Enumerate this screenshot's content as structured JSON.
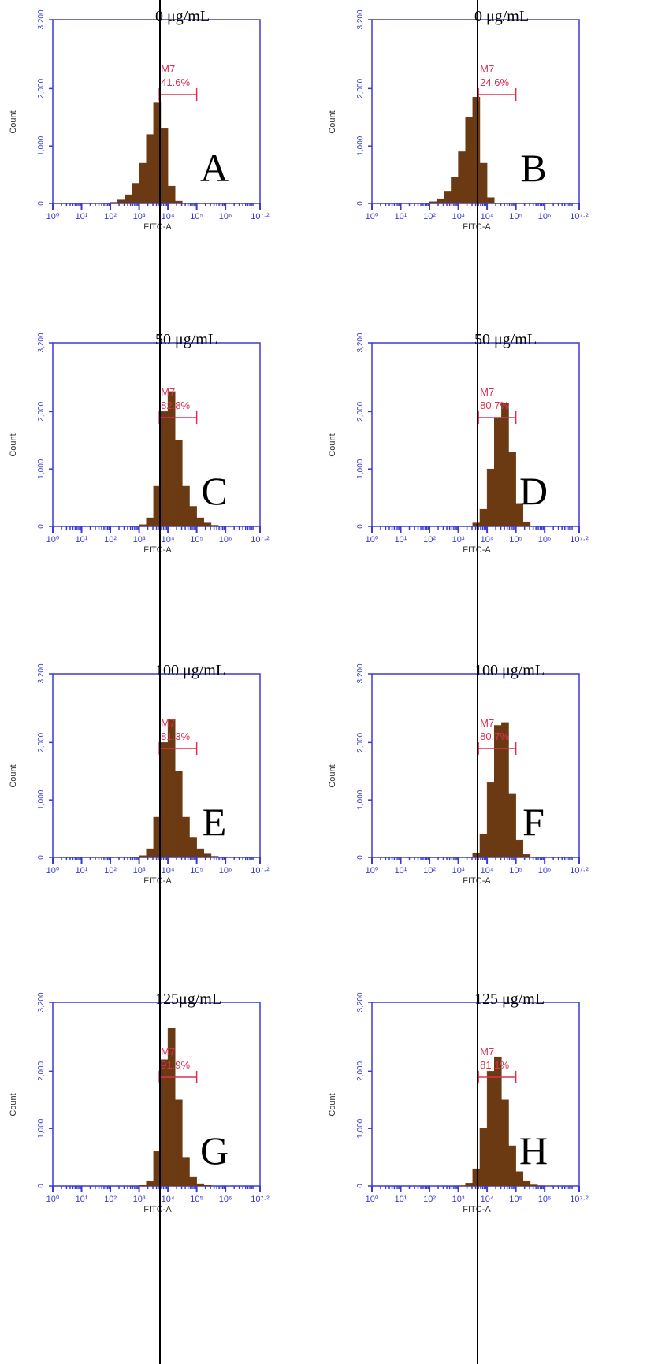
{
  "chart_data": [
    {
      "type": "histogram",
      "title": "0 μg/mL",
      "panel": "A",
      "xlabel": "FITC-A",
      "ylabel": "Count",
      "gate_label": "M7",
      "gate_percent": "41.6%",
      "gate_range": [
        3.7,
        5.0
      ],
      "color": "#6b3a12",
      "bins": [
        2.0,
        2.25,
        2.5,
        2.75,
        3.0,
        3.25,
        3.5,
        3.75,
        4.0,
        4.25,
        4.5,
        4.75,
        5.0,
        5.25,
        5.5,
        5.75,
        6.0
      ],
      "values": [
        20,
        60,
        150,
        350,
        700,
        1200,
        1750,
        1300,
        300,
        40,
        10,
        0,
        0,
        0,
        0,
        0
      ],
      "xlim": [
        0,
        7.2
      ],
      "ylim": [
        0,
        3200
      ],
      "xscale": "log",
      "xticks": [
        {
          "value": 0,
          "label": "10⁰"
        },
        {
          "value": 1,
          "label": "10¹"
        },
        {
          "value": 2,
          "label": "10²"
        },
        {
          "value": 3,
          "label": "10³"
        },
        {
          "value": 4,
          "label": "10⁴"
        },
        {
          "value": 5,
          "label": "10⁵"
        },
        {
          "value": 6,
          "label": "10⁶"
        },
        {
          "value": 7.2,
          "label": "10⁷·²"
        }
      ],
      "yticks": [
        0,
        {
          "value": 1000,
          "label": "1,000"
        },
        {
          "value": 2000,
          "label": "2,000"
        },
        {
          "value": 3200,
          "label": "3,200"
        }
      ]
    },
    {
      "type": "histogram",
      "title": "0 μg/mL",
      "panel": "B",
      "xlabel": "FITC-A",
      "ylabel": "Count",
      "gate_label": "M7",
      "gate_percent": "24.6%",
      "gate_range": [
        3.7,
        5.0
      ],
      "color": "#6b3a12",
      "bins": [
        2.0,
        2.25,
        2.5,
        2.75,
        3.0,
        3.25,
        3.5,
        3.75,
        4.0,
        4.25,
        4.5,
        4.75,
        5.0,
        5.25,
        5.5,
        5.75,
        6.0
      ],
      "values": [
        30,
        80,
        200,
        450,
        900,
        1500,
        1850,
        700,
        100,
        10,
        0,
        0,
        0,
        0,
        0,
        0
      ],
      "xlim": [
        0,
        7.2
      ],
      "ylim": [
        0,
        3200
      ],
      "xscale": "log",
      "xticks": [
        {
          "value": 0,
          "label": "10⁰"
        },
        {
          "value": 1,
          "label": "10¹"
        },
        {
          "value": 2,
          "label": "10²"
        },
        {
          "value": 3,
          "label": "10³"
        },
        {
          "value": 4,
          "label": "10⁴"
        },
        {
          "value": 5,
          "label": "10⁵"
        },
        {
          "value": 6,
          "label": "10⁶"
        },
        {
          "value": 7.2,
          "label": "10⁷·²"
        }
      ],
      "yticks": [
        0,
        {
          "value": 1000,
          "label": "1,000"
        },
        {
          "value": 2000,
          "label": "2,000"
        },
        {
          "value": 3200,
          "label": "3,200"
        }
      ]
    },
    {
      "type": "histogram",
      "title": "50 μg/mL",
      "panel": "C",
      "xlabel": "FITC-A",
      "ylabel": "Count",
      "gate_label": "M7",
      "gate_percent": "82.8%",
      "gate_range": [
        3.7,
        5.0
      ],
      "color": "#6b3a12",
      "bins": [
        2.0,
        2.25,
        2.5,
        2.75,
        3.0,
        3.25,
        3.5,
        3.75,
        4.0,
        4.25,
        4.5,
        4.75,
        5.0,
        5.25,
        5.5,
        5.75,
        6.0
      ],
      "values": [
        0,
        0,
        0,
        5,
        30,
        150,
        700,
        2000,
        2350,
        1500,
        700,
        350,
        150,
        60,
        20,
        5
      ],
      "xlim": [
        0,
        7.2
      ],
      "ylim": [
        0,
        3200
      ],
      "xscale": "log",
      "xticks": [
        {
          "value": 0,
          "label": "10⁰"
        },
        {
          "value": 1,
          "label": "10¹"
        },
        {
          "value": 2,
          "label": "10²"
        },
        {
          "value": 3,
          "label": "10³"
        },
        {
          "value": 4,
          "label": "10⁴"
        },
        {
          "value": 5,
          "label": "10⁵"
        },
        {
          "value": 6,
          "label": "10⁶"
        },
        {
          "value": 7.2,
          "label": "10⁷·²"
        }
      ],
      "yticks": [
        0,
        {
          "value": 1000,
          "label": "1,000"
        },
        {
          "value": 2000,
          "label": "2,000"
        },
        {
          "value": 3200,
          "label": "3,200"
        }
      ]
    },
    {
      "type": "histogram",
      "title": "50 μg/mL",
      "panel": "D",
      "xlabel": "FITC-A",
      "ylabel": "Count",
      "gate_label": "M7",
      "gate_percent": "80.7%",
      "gate_range": [
        3.7,
        5.0
      ],
      "color": "#6b3a12",
      "bins": [
        2.0,
        2.25,
        2.5,
        2.75,
        3.0,
        3.25,
        3.5,
        3.75,
        4.0,
        4.25,
        4.5,
        4.75,
        5.0,
        5.25,
        5.5,
        5.75,
        6.0
      ],
      "values": [
        0,
        0,
        0,
        0,
        0,
        10,
        60,
        300,
        1000,
        1900,
        2150,
        1300,
        400,
        80,
        10,
        0
      ],
      "xlim": [
        0,
        7.2
      ],
      "ylim": [
        0,
        3200
      ],
      "xscale": "log",
      "xticks": [
        {
          "value": 0,
          "label": "10⁰"
        },
        {
          "value": 1,
          "label": "10¹"
        },
        {
          "value": 2,
          "label": "10²"
        },
        {
          "value": 3,
          "label": "10³"
        },
        {
          "value": 4,
          "label": "10⁴"
        },
        {
          "value": 5,
          "label": "10⁵"
        },
        {
          "value": 6,
          "label": "10⁶"
        },
        {
          "value": 7.2,
          "label": "10⁷·²"
        }
      ],
      "yticks": [
        0,
        {
          "value": 1000,
          "label": "1,000"
        },
        {
          "value": 2000,
          "label": "2,000"
        },
        {
          "value": 3200,
          "label": "3,200"
        }
      ]
    },
    {
      "type": "histogram",
      "title": "100 μg/mL",
      "panel": "E",
      "xlabel": "FITC-A",
      "ylabel": "Count",
      "gate_label": "M7",
      "gate_percent": "81.3%",
      "gate_range": [
        3.7,
        5.0
      ],
      "color": "#6b3a12",
      "bins": [
        2.0,
        2.25,
        2.5,
        2.75,
        3.0,
        3.25,
        3.5,
        3.75,
        4.0,
        4.25,
        4.5,
        4.75,
        5.0,
        5.25,
        5.5,
        5.75,
        6.0
      ],
      "values": [
        0,
        0,
        0,
        5,
        30,
        150,
        700,
        2000,
        2400,
        1500,
        700,
        350,
        150,
        60,
        20,
        5
      ],
      "xlim": [
        0,
        7.2
      ],
      "ylim": [
        0,
        3200
      ],
      "xscale": "log",
      "xticks": [
        {
          "value": 0,
          "label": "10⁰"
        },
        {
          "value": 1,
          "label": "10¹"
        },
        {
          "value": 2,
          "label": "10²"
        },
        {
          "value": 3,
          "label": "10³"
        },
        {
          "value": 4,
          "label": "10⁴"
        },
        {
          "value": 5,
          "label": "10⁵"
        },
        {
          "value": 6,
          "label": "10⁶"
        },
        {
          "value": 7.2,
          "label": "10⁷·²"
        }
      ],
      "yticks": [
        0,
        {
          "value": 1000,
          "label": "1,000"
        },
        {
          "value": 2000,
          "label": "2,000"
        },
        {
          "value": 3200,
          "label": "3,200"
        }
      ]
    },
    {
      "type": "histogram",
      "title": "100 μg/mL",
      "panel": "F",
      "xlabel": "FITC-A",
      "ylabel": "Count",
      "gate_label": "M7",
      "gate_percent": "80.7%",
      "gate_range": [
        3.7,
        5.0
      ],
      "color": "#6b3a12",
      "bins": [
        2.0,
        2.25,
        2.5,
        2.75,
        3.0,
        3.25,
        3.5,
        3.75,
        4.0,
        4.25,
        4.5,
        4.75,
        5.0,
        5.25,
        5.5,
        5.75,
        6.0
      ],
      "values": [
        0,
        0,
        0,
        0,
        0,
        10,
        80,
        400,
        1300,
        2300,
        2350,
        1100,
        300,
        50,
        5,
        0
      ],
      "xlim": [
        0,
        7.2
      ],
      "ylim": [
        0,
        3200
      ],
      "xscale": "log",
      "xticks": [
        {
          "value": 0,
          "label": "10⁰"
        },
        {
          "value": 1,
          "label": "10¹"
        },
        {
          "value": 2,
          "label": "10²"
        },
        {
          "value": 3,
          "label": "10³"
        },
        {
          "value": 4,
          "label": "10⁴"
        },
        {
          "value": 5,
          "label": "10⁵"
        },
        {
          "value": 6,
          "label": "10⁶"
        },
        {
          "value": 7.2,
          "label": "10⁷·²"
        }
      ],
      "yticks": [
        0,
        {
          "value": 1000,
          "label": "1,000"
        },
        {
          "value": 2000,
          "label": "2,000"
        },
        {
          "value": 3200,
          "label": "3,200"
        }
      ]
    },
    {
      "type": "histogram",
      "title": "125μg/mL",
      "panel": "G",
      "xlabel": "FITC-A",
      "ylabel": "Count",
      "gate_label": "M7",
      "gate_percent": "91.9%",
      "gate_range": [
        3.7,
        5.0
      ],
      "color": "#6b3a12",
      "bins": [
        2.0,
        2.25,
        2.5,
        2.75,
        3.0,
        3.25,
        3.5,
        3.75,
        4.0,
        4.25,
        4.5,
        4.75,
        5.0,
        5.25,
        5.5,
        5.75,
        6.0
      ],
      "values": [
        0,
        0,
        0,
        0,
        10,
        80,
        600,
        2200,
        2750,
        1500,
        500,
        150,
        40,
        10,
        0,
        0
      ],
      "xlim": [
        0,
        7.2
      ],
      "ylim": [
        0,
        3200
      ],
      "xscale": "log",
      "xticks": [
        {
          "value": 0,
          "label": "10⁰"
        },
        {
          "value": 1,
          "label": "10¹"
        },
        {
          "value": 2,
          "label": "10²"
        },
        {
          "value": 3,
          "label": "10³"
        },
        {
          "value": 4,
          "label": "10⁴"
        },
        {
          "value": 5,
          "label": "10⁵"
        },
        {
          "value": 6,
          "label": "10⁶"
        },
        {
          "value": 7.2,
          "label": "10⁷·²"
        }
      ],
      "yticks": [
        0,
        {
          "value": 1000,
          "label": "1,000"
        },
        {
          "value": 2000,
          "label": "2,000"
        },
        {
          "value": 3200,
          "label": "3,200"
        }
      ]
    },
    {
      "type": "histogram",
      "title": "125 μg/mL",
      "panel": "H",
      "xlabel": "FITC-A",
      "ylabel": "Count",
      "gate_label": "M7",
      "gate_percent": "81.1%",
      "gate_range": [
        3.7,
        5.0
      ],
      "color": "#6b3a12",
      "bins": [
        2.0,
        2.25,
        2.5,
        2.75,
        3.0,
        3.25,
        3.5,
        3.75,
        4.0,
        4.25,
        4.5,
        4.75,
        5.0,
        5.25,
        5.5,
        5.75,
        6.0
      ],
      "values": [
        0,
        0,
        0,
        0,
        5,
        50,
        300,
        1000,
        2000,
        2250,
        1500,
        700,
        250,
        80,
        20,
        5
      ],
      "xlim": [
        0,
        7.2
      ],
      "ylim": [
        0,
        3200
      ],
      "xscale": "log",
      "xticks": [
        {
          "value": 0,
          "label": "10⁰"
        },
        {
          "value": 1,
          "label": "10¹"
        },
        {
          "value": 2,
          "label": "10²"
        },
        {
          "value": 3,
          "label": "10³"
        },
        {
          "value": 4,
          "label": "10⁴"
        },
        {
          "value": 5,
          "label": "10⁵"
        },
        {
          "value": 6,
          "label": "10⁶"
        },
        {
          "value": 7.2,
          "label": "10⁷·²"
        }
      ],
      "yticks": [
        0,
        {
          "value": 1000,
          "label": "1,000"
        },
        {
          "value": 2000,
          "label": "2,000"
        },
        {
          "value": 3200,
          "label": "3,200"
        }
      ]
    }
  ]
}
